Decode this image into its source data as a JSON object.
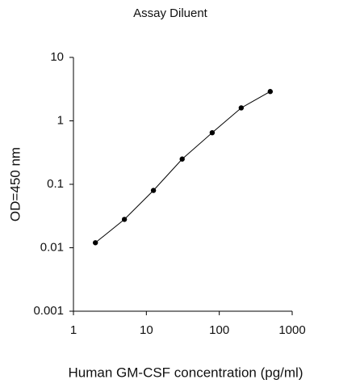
{
  "chart_data": {
    "type": "line",
    "title": "Assay Diluent",
    "x_label": "Human GM-CSF concentration (pg/ml)",
    "y_label": "OD=450 nm",
    "x": [
      2,
      5,
      12.5,
      31,
      80,
      200,
      500
    ],
    "values": [
      0.012,
      0.028,
      0.08,
      0.25,
      0.65,
      1.6,
      2.9
    ],
    "color": "#000000",
    "markers": true,
    "xscale": "log",
    "yscale": "log",
    "xlim": [
      1,
      1000
    ],
    "xticks": [
      1,
      10,
      100,
      1000
    ],
    "ylim": [
      0.001,
      10
    ],
    "yticks": [
      0.001,
      0.01,
      0.1,
      1,
      10
    ],
    "grid": false
  }
}
